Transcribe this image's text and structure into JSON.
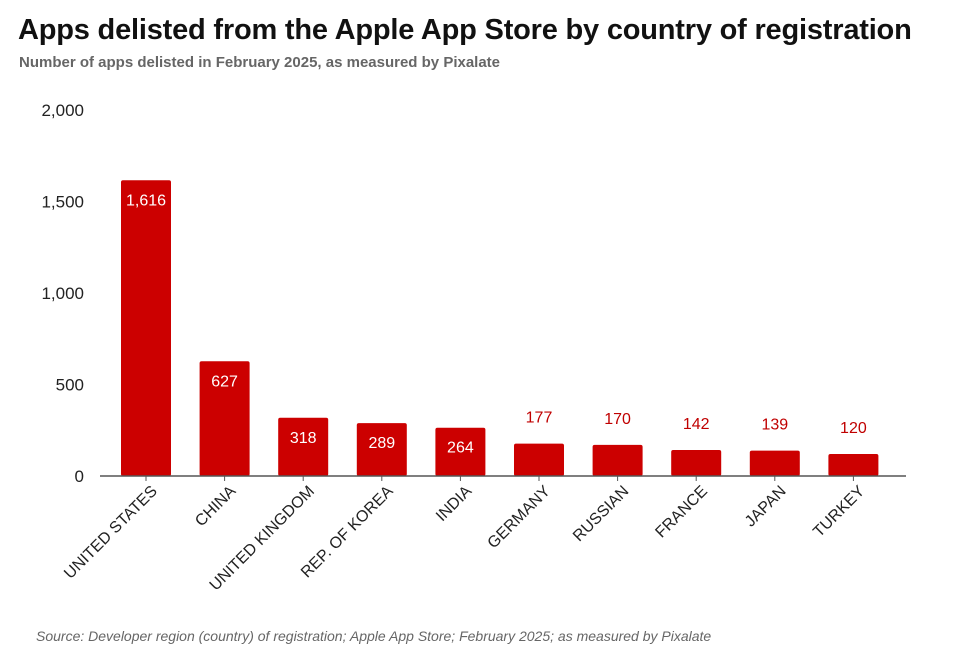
{
  "header": {
    "title": "Apps delisted from the Apple App Store by country of registration",
    "subtitle": "Number of apps delisted in February 2025, as measured by Pixalate"
  },
  "footer": {
    "source": "Source: Developer region (country) of registration; Apple App Store; February 2025; as measured by Pixalate"
  },
  "colors": {
    "bar": "#cc0000",
    "axis": "#555555",
    "label_out": "#c00000"
  },
  "chart_data": {
    "type": "bar",
    "title": "Apps delisted from the Apple App Store by country of registration",
    "subtitle": "Number of apps delisted in February 2025, as measured by Pixalate",
    "xlabel": "",
    "ylabel": "",
    "categories": [
      "UNITED STATES",
      "CHINA",
      "UNITED KINGDOM",
      "REP. OF KOREA",
      "INDIA",
      "GERMANY",
      "RUSSIAN",
      "FRANCE",
      "JAPAN",
      "TURKEY"
    ],
    "values": [
      1616,
      627,
      318,
      289,
      264,
      177,
      170,
      142,
      139,
      120
    ],
    "value_labels": [
      "1,616",
      "627",
      "318",
      "289",
      "264",
      "177",
      "170",
      "142",
      "139",
      "120"
    ],
    "ylim": [
      0,
      2000
    ],
    "yticks": [
      0,
      500,
      1000,
      1500,
      2000
    ],
    "ytick_labels": [
      "0",
      "500",
      "1,000",
      "1,500",
      "2,000"
    ],
    "grid": false,
    "legend": "none"
  }
}
